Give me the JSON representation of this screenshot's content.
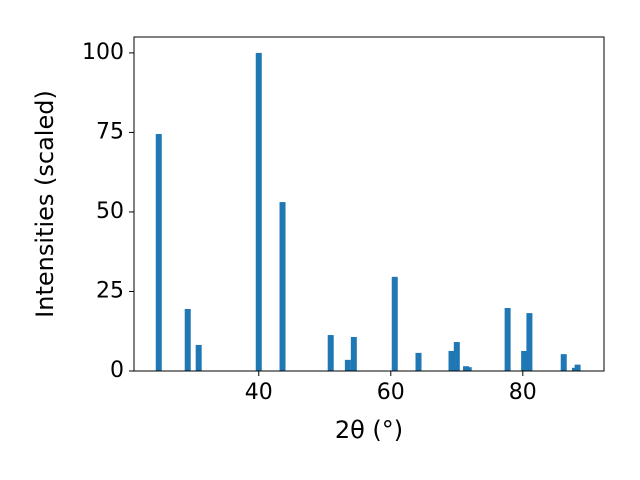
{
  "chart_data": {
    "type": "bar",
    "xlabel": "2θ (°)",
    "ylabel": "Intensities (scaled)",
    "x": [
      24.85,
      29.24,
      30.9,
      40.0,
      43.6,
      50.9,
      53.5,
      54.4,
      60.6,
      64.2,
      69.2,
      70.0,
      71.4,
      71.8,
      77.7,
      80.2,
      81.0,
      86.2,
      87.9,
      88.3
    ],
    "values": [
      74.5,
      19.5,
      8.2,
      100,
      53.1,
      11.3,
      3.5,
      10.7,
      29.6,
      5.7,
      6.3,
      9.1,
      1.5,
      1.2,
      19.8,
      6.3,
      18.2,
      5.3,
      1.0,
      2.0
    ],
    "color": "#1f77b4",
    "xlim": [
      21.1,
      92.3
    ],
    "xticks": [
      40,
      60,
      80
    ],
    "ylim": [
      0,
      105
    ],
    "yticks": [
      0,
      25,
      50,
      75,
      100
    ],
    "grid": false
  }
}
